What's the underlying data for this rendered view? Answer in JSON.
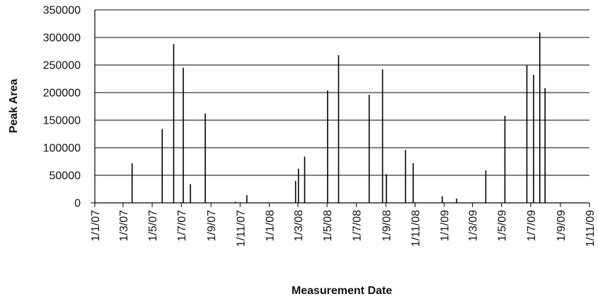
{
  "chart_data": {
    "type": "bar",
    "xlabel": "Measurement Date",
    "ylabel": "Peak Area",
    "ylim": [
      0,
      350000
    ],
    "y_ticks": [
      "0",
      "50000",
      "100000",
      "150000",
      "200000",
      "250000",
      "300000",
      "350000"
    ],
    "x_range": [
      "2007-01-01",
      "2009-11-01"
    ],
    "x_ticks": [
      {
        "date": "2007-01-01",
        "label": "1/1/07"
      },
      {
        "date": "2007-03-01",
        "label": "1/3/07"
      },
      {
        "date": "2007-05-01",
        "label": "1/5/07"
      },
      {
        "date": "2007-07-01",
        "label": "1/7/07"
      },
      {
        "date": "2007-09-01",
        "label": "1/9/07"
      },
      {
        "date": "2007-11-01",
        "label": "1/11/07"
      },
      {
        "date": "2008-01-01",
        "label": "1/1/08"
      },
      {
        "date": "2008-03-01",
        "label": "1/3/08"
      },
      {
        "date": "2008-05-01",
        "label": "1/5/08"
      },
      {
        "date": "2008-07-01",
        "label": "1/7/08"
      },
      {
        "date": "2008-09-01",
        "label": "1/9/08"
      },
      {
        "date": "2008-11-01",
        "label": "1/11/08"
      },
      {
        "date": "2009-01-01",
        "label": "1/1/09"
      },
      {
        "date": "2009-03-01",
        "label": "1/3/09"
      },
      {
        "date": "2009-05-01",
        "label": "1/5/09"
      },
      {
        "date": "2009-07-01",
        "label": "1/7/09"
      },
      {
        "date": "2009-09-01",
        "label": "1/9/09"
      },
      {
        "date": "2009-11-01",
        "label": "1/11/09"
      }
    ],
    "grid": true,
    "legend": "none",
    "points": [
      {
        "x": "2007-03-20",
        "y": 72000
      },
      {
        "x": "2007-05-22",
        "y": 134000
      },
      {
        "x": "2007-06-15",
        "y": 288000
      },
      {
        "x": "2007-07-05",
        "y": 245000
      },
      {
        "x": "2007-07-20",
        "y": 34000
      },
      {
        "x": "2007-08-20",
        "y": 162000
      },
      {
        "x": "2007-10-22",
        "y": 2000
      },
      {
        "x": "2007-11-15",
        "y": 14000
      },
      {
        "x": "2008-02-25",
        "y": 40000
      },
      {
        "x": "2008-03-02",
        "y": 62000
      },
      {
        "x": "2008-03-15",
        "y": 84000
      },
      {
        "x": "2008-05-02",
        "y": 204000
      },
      {
        "x": "2008-05-25",
        "y": 268000
      },
      {
        "x": "2008-07-28",
        "y": 196000
      },
      {
        "x": "2008-08-25",
        "y": 242000
      },
      {
        "x": "2008-09-02",
        "y": 52000
      },
      {
        "x": "2008-10-12",
        "y": 96000
      },
      {
        "x": "2008-10-28",
        "y": 72000
      },
      {
        "x": "2008-12-28",
        "y": 12000
      },
      {
        "x": "2009-01-27",
        "y": 8000
      },
      {
        "x": "2009-03-29",
        "y": 59000
      },
      {
        "x": "2009-05-08",
        "y": 158000
      },
      {
        "x": "2009-06-23",
        "y": 250000
      },
      {
        "x": "2009-07-07",
        "y": 232000
      },
      {
        "x": "2009-07-20",
        "y": 309000
      },
      {
        "x": "2009-07-31",
        "y": 208000
      }
    ]
  }
}
